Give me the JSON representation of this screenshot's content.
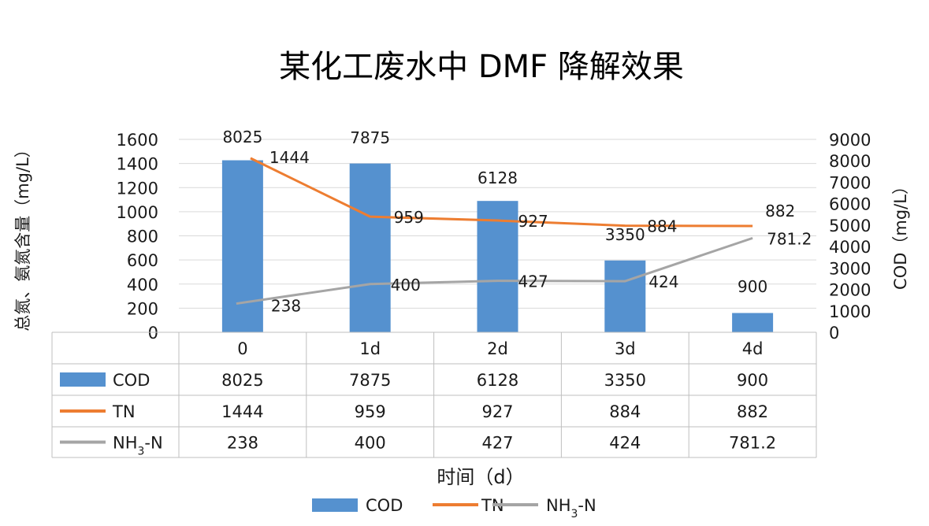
{
  "title": "某化工废水中 DMF 降解效果",
  "chart_data": {
    "type": "bar",
    "title": "某化工废水中 DMF 降解效果",
    "categories": [
      "0",
      "1d",
      "2d",
      "3d",
      "4d"
    ],
    "xlabel": "时间（d）",
    "ylabel_left": "总氮、氨氮含量（mg/L）",
    "ylabel_right": "COD（mg/L）",
    "ylim_left": [
      0,
      1600
    ],
    "ylim_right": [
      0,
      9000
    ],
    "yticks_left": [
      "0",
      "200",
      "400",
      "600",
      "800",
      "1000",
      "1200",
      "1400",
      "1600"
    ],
    "yticks_right": [
      "0",
      "1000",
      "2000",
      "3000",
      "4000",
      "5000",
      "6000",
      "7000",
      "8000",
      "9000"
    ],
    "grid": true,
    "legend_position": "bottom",
    "series": [
      {
        "name": "COD",
        "type": "bar",
        "axis": "right",
        "color": "#5591CF",
        "values": [
          8025,
          7875,
          6128,
          3350,
          900
        ],
        "labels": [
          "8025",
          "7875",
          "6128",
          "3350",
          "900"
        ]
      },
      {
        "name": "TN",
        "type": "line",
        "axis": "left",
        "color": "#ED7D31",
        "values": [
          1444,
          959,
          927,
          884,
          882
        ],
        "labels": [
          "1444",
          "959",
          "927",
          "884",
          "882"
        ]
      },
      {
        "name": "NH3-N",
        "type": "line",
        "axis": "left",
        "color": "#A5A5A5",
        "values": [
          238,
          400,
          427,
          424,
          781.2
        ],
        "labels": [
          "238",
          "400",
          "427",
          "424",
          "781.2"
        ]
      }
    ]
  }
}
